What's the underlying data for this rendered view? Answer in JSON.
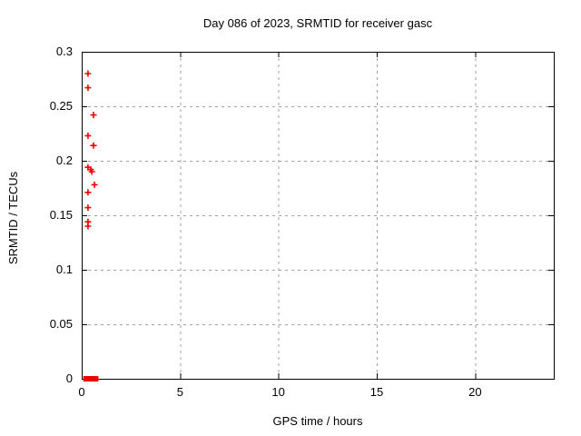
{
  "window": {
    "background_color": "#ffffff"
  },
  "chart_data": {
    "type": "scatter",
    "title": "Day 086 of 2023, SRMTID for receiver gasc",
    "xlabel": "GPS time / hours",
    "ylabel": "SRMTID / TECUs",
    "xlim": [
      0,
      24
    ],
    "ylim": [
      0,
      0.3
    ],
    "grid": true,
    "legend": "none",
    "marker_style": "plus",
    "marker_color": "#ee0000",
    "grid_color": "#a0a0a0",
    "axis_color": "#000000",
    "xticks": [
      {
        "v": 0,
        "label": "0"
      },
      {
        "v": 5,
        "label": "5"
      },
      {
        "v": 10,
        "label": "10"
      },
      {
        "v": 15,
        "label": "15"
      },
      {
        "v": 20,
        "label": "20"
      }
    ],
    "yticks": [
      {
        "v": 0.0,
        "label": "0"
      },
      {
        "v": 0.05,
        "label": "0.05"
      },
      {
        "v": 0.1,
        "label": "0.1"
      },
      {
        "v": 0.15,
        "label": "0.15"
      },
      {
        "v": 0.2,
        "label": "0.2"
      },
      {
        "v": 0.25,
        "label": "0.25"
      },
      {
        "v": 0.3,
        "label": "0.3"
      }
    ],
    "series": [
      {
        "name": "SRMTID",
        "points": [
          {
            "t": 0.32,
            "v": 0.28
          },
          {
            "t": 0.32,
            "v": 0.267
          },
          {
            "t": 0.6,
            "v": 0.242
          },
          {
            "t": 0.32,
            "v": 0.223
          },
          {
            "t": 0.6,
            "v": 0.214
          },
          {
            "t": 0.32,
            "v": 0.194
          },
          {
            "t": 0.46,
            "v": 0.192
          },
          {
            "t": 0.52,
            "v": 0.19
          },
          {
            "t": 0.65,
            "v": 0.178
          },
          {
            "t": 0.32,
            "v": 0.171
          },
          {
            "t": 0.32,
            "v": 0.157
          },
          {
            "t": 0.32,
            "v": 0.144
          },
          {
            "t": 0.32,
            "v": 0.14
          }
        ],
        "zero_cluster": {
          "t_start": 0.08,
          "t_end": 0.85,
          "value": 0
        }
      }
    ]
  }
}
